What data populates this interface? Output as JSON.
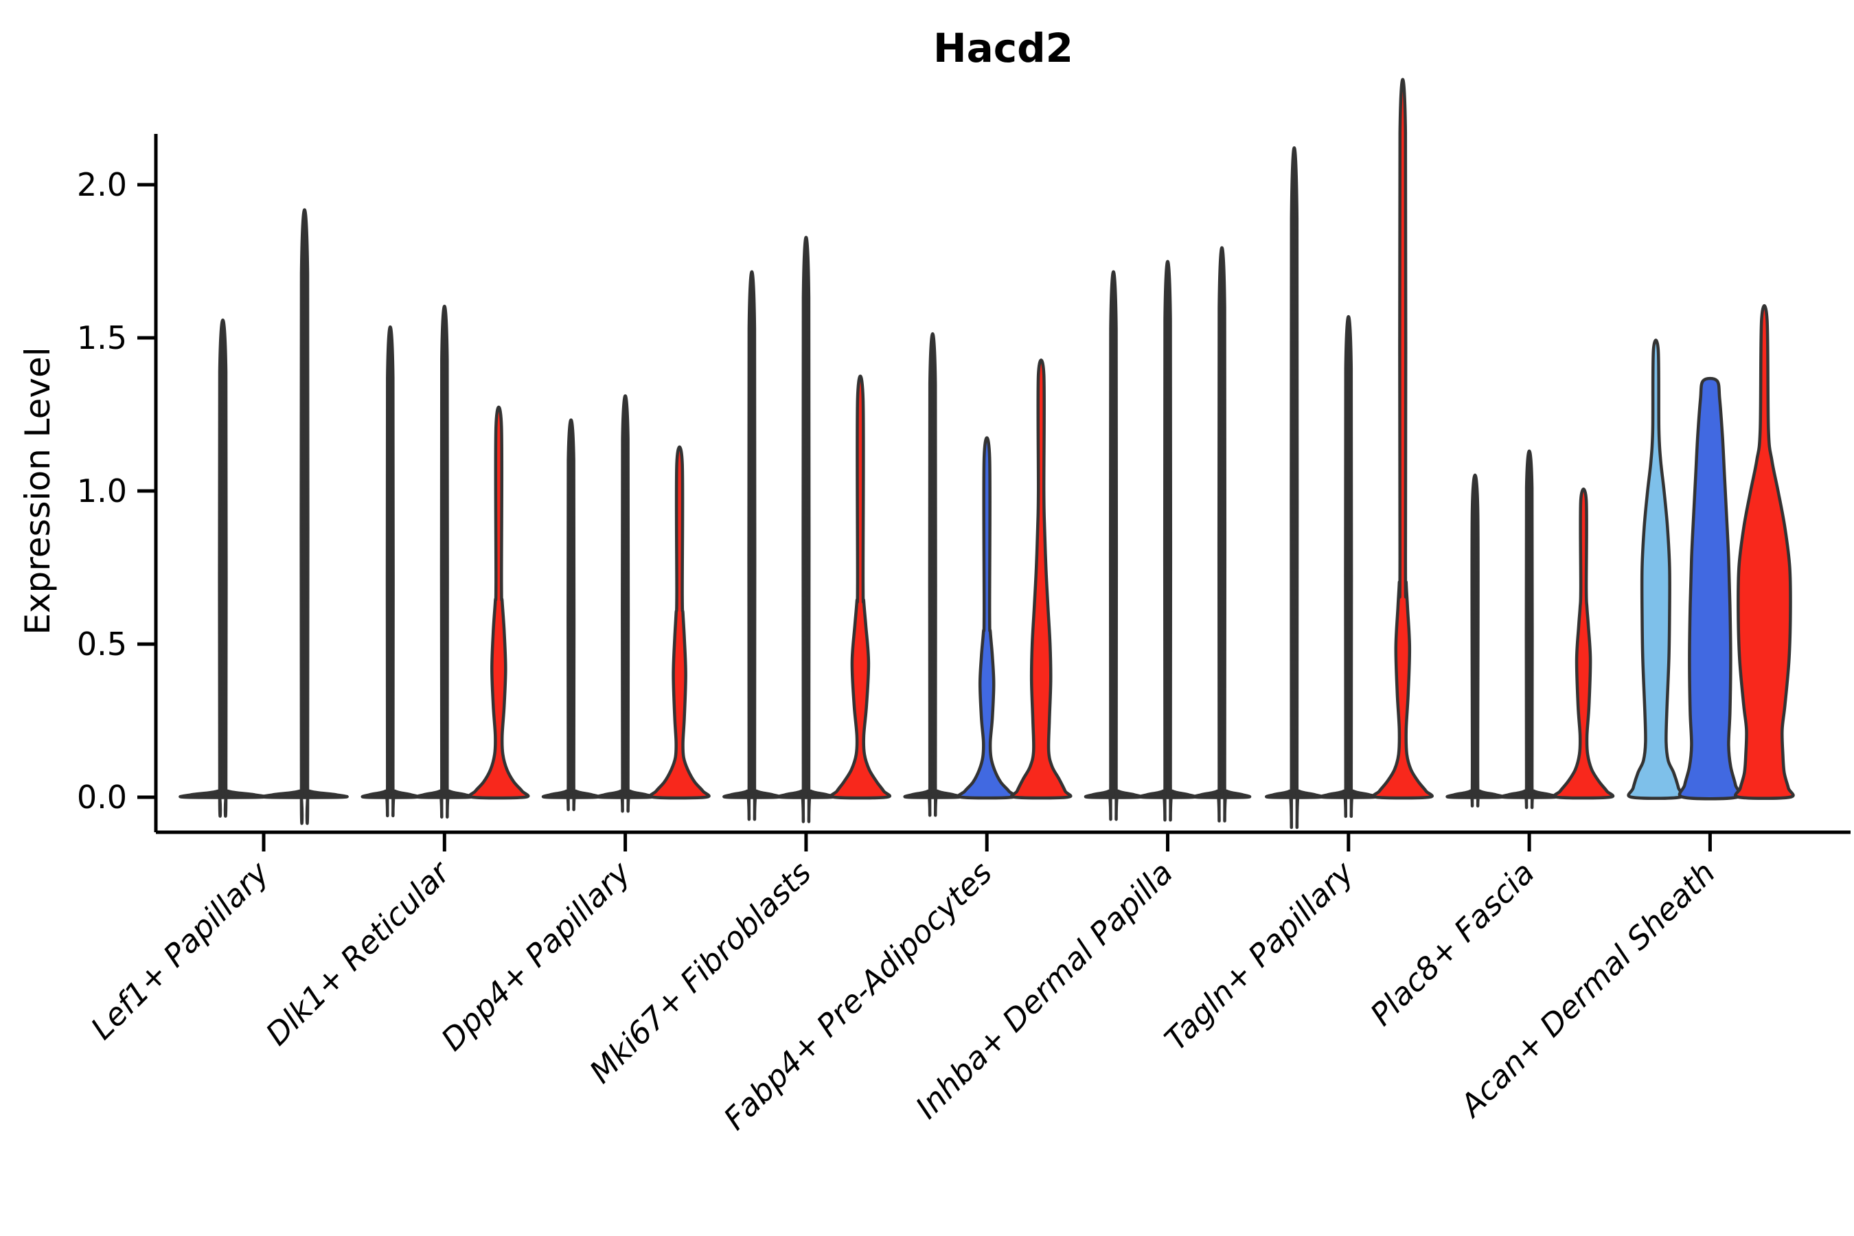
{
  "chart_data": {
    "type": "violin",
    "title": "Hacd2",
    "xlabel": "",
    "ylabel": "Expression Level",
    "ylim": [
      0,
      2.25
    ],
    "yticks": [
      "0.0",
      "0.5",
      "1.0",
      "1.5",
      "2.0"
    ],
    "ytick_values": [
      0.0,
      0.5,
      1.0,
      1.5,
      2.0
    ],
    "grid": false,
    "legend": "none",
    "palette": {
      "condition_a": "#7EC0EA",
      "condition_b": "#4169E1",
      "condition_c": "#F8281C",
      "outline": "#333333",
      "axis": "#000000"
    },
    "categories": [
      {
        "label": "Lef1+ Papillary",
        "violins": [
          {
            "series": 1,
            "color": "none",
            "max": 1.39,
            "kind": "spike",
            "base_hw": 55
          },
          {
            "series": 3,
            "color": "none",
            "max": 1.71,
            "kind": "spike",
            "base_hw": 55
          }
        ]
      },
      {
        "label": "Dlk1+ Reticular",
        "violins": [
          {
            "series": 1,
            "color": "none",
            "max": 1.37,
            "kind": "spike",
            "base_hw": 36
          },
          {
            "series": 2,
            "color": "none",
            "max": 1.43,
            "kind": "spike",
            "base_hw": 36
          },
          {
            "series": 3,
            "color": "condition_c",
            "max": 1.21,
            "kind": "profile",
            "points": [
              [
                0,
                38
              ],
              [
                0.02,
                34
              ],
              [
                0.05,
                22
              ],
              [
                0.09,
                12
              ],
              [
                0.14,
                6
              ],
              [
                0.2,
                5
              ],
              [
                0.3,
                8
              ],
              [
                0.42,
                10
              ],
              [
                0.54,
                8
              ],
              [
                0.64,
                5
              ],
              [
                0.7,
                4
              ],
              [
                1.21,
                4
              ]
            ]
          }
        ]
      },
      {
        "label": "Dpp4+ Papillary",
        "violins": [
          {
            "series": 1,
            "color": "none",
            "max": 1.1,
            "kind": "spike",
            "base_hw": 36
          },
          {
            "series": 2,
            "color": "none",
            "max": 1.17,
            "kind": "spike",
            "base_hw": 36
          },
          {
            "series": 3,
            "color": "condition_c",
            "max": 1.09,
            "kind": "profile",
            "points": [
              [
                0,
                38
              ],
              [
                0.02,
                34
              ],
              [
                0.05,
                22
              ],
              [
                0.09,
                12
              ],
              [
                0.13,
                6
              ],
              [
                0.18,
                5
              ],
              [
                0.26,
                7
              ],
              [
                0.4,
                9
              ],
              [
                0.52,
                7
              ],
              [
                0.6,
                5
              ],
              [
                0.66,
                4
              ],
              [
                1.09,
                4
              ]
            ]
          }
        ]
      },
      {
        "label": "Mki67+ Fibroblasts",
        "violins": [
          {
            "series": 1,
            "color": "none",
            "max": 1.53,
            "kind": "spike",
            "base_hw": 36
          },
          {
            "series": 2,
            "color": "none",
            "max": 1.63,
            "kind": "spike",
            "base_hw": 36
          },
          {
            "series": 3,
            "color": "condition_c",
            "max": 1.3,
            "kind": "profile",
            "points": [
              [
                0,
                38
              ],
              [
                0.02,
                34
              ],
              [
                0.05,
                24
              ],
              [
                0.09,
                13
              ],
              [
                0.14,
                6
              ],
              [
                0.2,
                5
              ],
              [
                0.3,
                9
              ],
              [
                0.44,
                12
              ],
              [
                0.56,
                8
              ],
              [
                0.64,
                5
              ],
              [
                0.7,
                4
              ],
              [
                1.3,
                4
              ]
            ]
          }
        ]
      },
      {
        "label": "Fabp4+ Pre-Adipocytes",
        "violins": [
          {
            "series": 1,
            "color": "none",
            "max": 1.35,
            "kind": "spike",
            "base_hw": 36
          },
          {
            "series": 2,
            "color": "condition_b",
            "max": 1.11,
            "kind": "profile",
            "points": [
              [
                0,
                37
              ],
              [
                0.02,
                32
              ],
              [
                0.05,
                20
              ],
              [
                0.09,
                11
              ],
              [
                0.13,
                6
              ],
              [
                0.18,
                5
              ],
              [
                0.26,
                8
              ],
              [
                0.37,
                10
              ],
              [
                0.46,
                8
              ],
              [
                0.54,
                5
              ],
              [
                0.6,
                4
              ],
              [
                1.11,
                4
              ]
            ]
          },
          {
            "series": 3,
            "color": "condition_c",
            "max": 1.38,
            "kind": "profile",
            "points": [
              [
                0,
                38
              ],
              [
                0.02,
                35
              ],
              [
                0.06,
                26
              ],
              [
                0.1,
                16
              ],
              [
                0.15,
                11
              ],
              [
                0.25,
                12
              ],
              [
                0.38,
                14
              ],
              [
                0.5,
                13
              ],
              [
                0.62,
                10
              ],
              [
                0.75,
                7
              ],
              [
                0.88,
                5
              ],
              [
                1.0,
                4
              ],
              [
                1.38,
                4
              ]
            ]
          }
        ]
      },
      {
        "label": "Inhba+ Dermal Papilla",
        "violins": [
          {
            "series": 1,
            "color": "none",
            "max": 1.53,
            "kind": "spike",
            "base_hw": 36
          },
          {
            "series": 2,
            "color": "none",
            "max": 1.56,
            "kind": "spike",
            "base_hw": 36
          },
          {
            "series": 3,
            "color": "none",
            "max": 1.6,
            "kind": "spike",
            "base_hw": 36
          }
        ]
      },
      {
        "label": "Tagln+ Papillary",
        "violins": [
          {
            "series": 1,
            "color": "none",
            "max": 1.89,
            "kind": "spike",
            "base_hw": 36
          },
          {
            "series": 2,
            "color": "none",
            "max": 1.4,
            "kind": "spike",
            "base_hw": 36
          },
          {
            "series": 3,
            "color": "condition_c",
            "max": 2.17,
            "kind": "profile",
            "points": [
              [
                0,
                38
              ],
              [
                0.02,
                34
              ],
              [
                0.05,
                23
              ],
              [
                0.09,
                12
              ],
              [
                0.14,
                6
              ],
              [
                0.22,
                5
              ],
              [
                0.34,
                8
              ],
              [
                0.49,
                10
              ],
              [
                0.62,
                7
              ],
              [
                0.7,
                5
              ],
              [
                0.78,
                4
              ],
              [
                2.17,
                4
              ]
            ]
          }
        ]
      },
      {
        "label": "Plac8+ Fascia",
        "violins": [
          {
            "series": 1,
            "color": "none",
            "max": 0.94,
            "kind": "spike",
            "base_hw": 36
          },
          {
            "series": 2,
            "color": "none",
            "max": 1.01,
            "kind": "spike",
            "base_hw": 36
          },
          {
            "series": 3,
            "color": "condition_c",
            "max": 0.97,
            "kind": "profile",
            "points": [
              [
                0,
                38
              ],
              [
                0.02,
                34
              ],
              [
                0.05,
                23
              ],
              [
                0.09,
                12
              ],
              [
                0.14,
                6
              ],
              [
                0.2,
                5
              ],
              [
                0.3,
                8
              ],
              [
                0.45,
                10
              ],
              [
                0.56,
                7
              ],
              [
                0.62,
                5
              ],
              [
                0.68,
                4
              ],
              [
                0.97,
                4
              ]
            ]
          }
        ]
      },
      {
        "label": "Acan+ Dermal Sheath",
        "violins": [
          {
            "series": 1,
            "color": "condition_a",
            "max": 1.46,
            "kind": "profile",
            "points": [
              [
                0,
                35
              ],
              [
                0.03,
                33
              ],
              [
                0.08,
                26
              ],
              [
                0.12,
                18
              ],
              [
                0.18,
                15
              ],
              [
                0.28,
                16
              ],
              [
                0.45,
                19
              ],
              [
                0.6,
                20
              ],
              [
                0.75,
                20
              ],
              [
                0.88,
                17
              ],
              [
                1.0,
                12
              ],
              [
                1.1,
                7
              ],
              [
                1.2,
                4.5
              ],
              [
                1.46,
                3.5
              ]
            ]
          },
          {
            "series": 2,
            "color": "condition_b",
            "max": 1.36,
            "kind": "profile",
            "points": [
              [
                0,
                39
              ],
              [
                0.04,
                37
              ],
              [
                0.1,
                30
              ],
              [
                0.17,
                27
              ],
              [
                0.28,
                29
              ],
              [
                0.45,
                30
              ],
              [
                0.62,
                29
              ],
              [
                0.78,
                27
              ],
              [
                0.92,
                24
              ],
              [
                1.05,
                21
              ],
              [
                1.18,
                18
              ],
              [
                1.3,
                14
              ],
              [
                1.36,
                10
              ]
            ]
          },
          {
            "series": 3,
            "color": "condition_c",
            "max": 1.56,
            "kind": "profile",
            "points": [
              [
                0,
                37
              ],
              [
                0.03,
                35
              ],
              [
                0.08,
                29
              ],
              [
                0.14,
                27
              ],
              [
                0.22,
                26
              ],
              [
                0.3,
                30
              ],
              [
                0.45,
                36
              ],
              [
                0.6,
                38
              ],
              [
                0.75,
                37
              ],
              [
                0.88,
                30
              ],
              [
                1.0,
                20
              ],
              [
                1.1,
                11
              ],
              [
                1.2,
                6
              ],
              [
                1.56,
                4
              ]
            ]
          }
        ]
      }
    ]
  }
}
